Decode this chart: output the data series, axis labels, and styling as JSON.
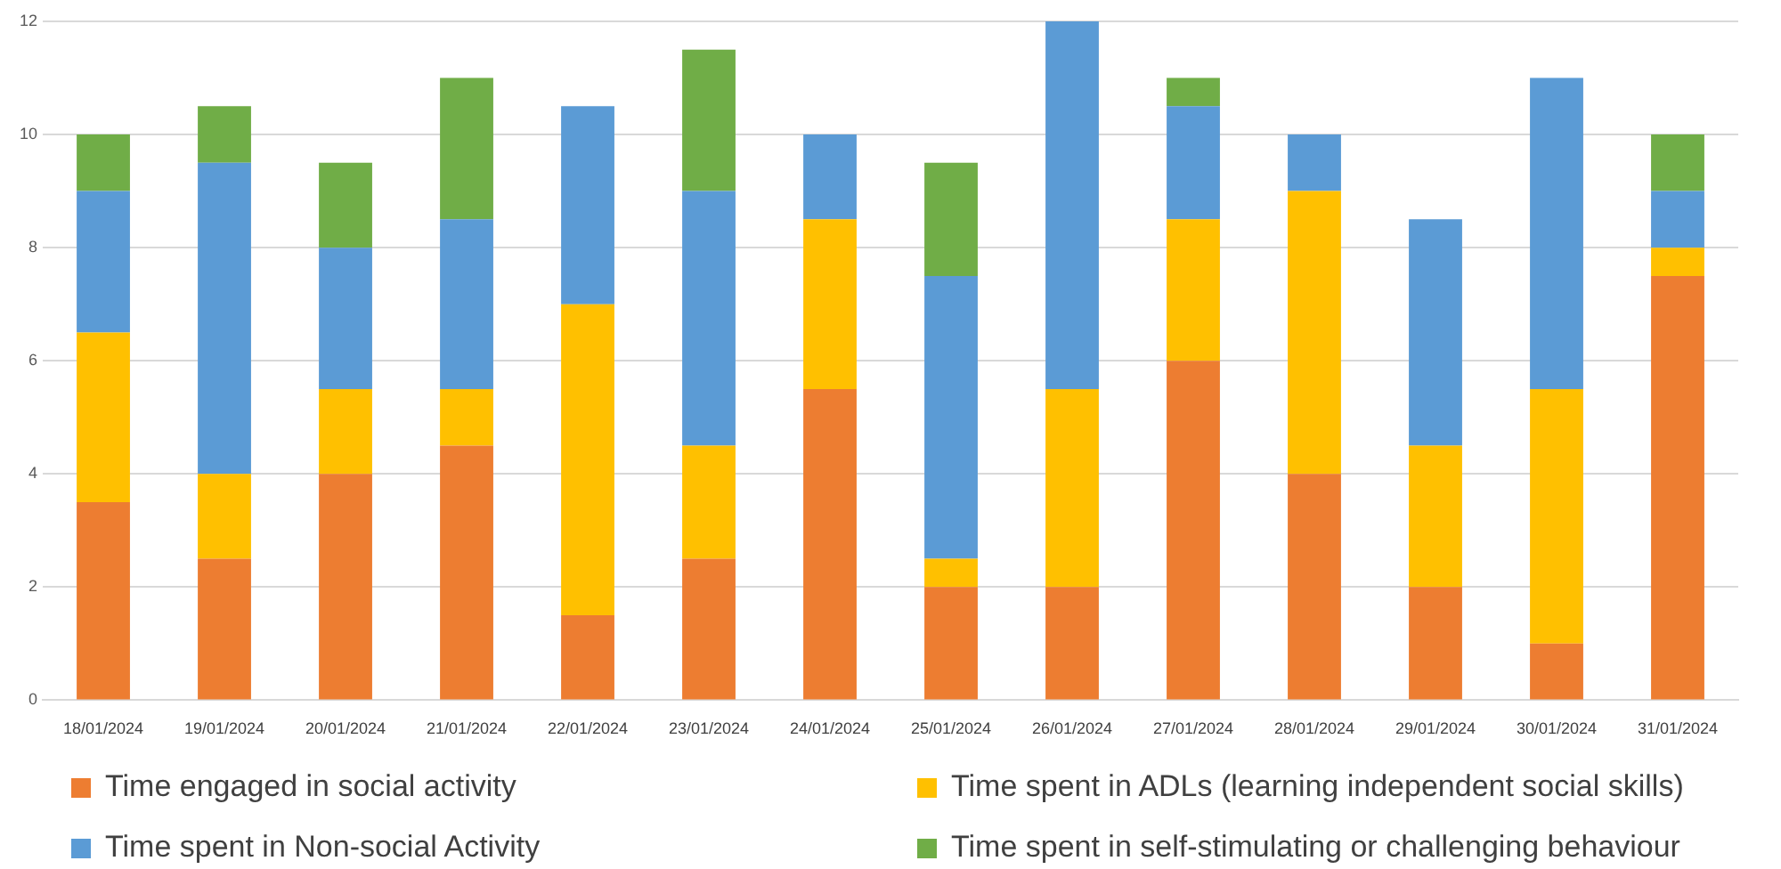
{
  "chart_data": {
    "type": "bar",
    "stacked": true,
    "grid": "y",
    "legend": "bottom",
    "categories": [
      "18/01/2024",
      "19/01/2024",
      "20/01/2024",
      "21/01/2024",
      "22/01/2024",
      "23/01/2024",
      "24/01/2024",
      "25/01/2024",
      "26/01/2024",
      "27/01/2024",
      "28/01/2024",
      "29/01/2024",
      "30/01/2024",
      "31/01/2024"
    ],
    "ylim": [
      0,
      12
    ],
    "yticks": [
      0,
      2,
      4,
      6,
      8,
      10,
      12
    ],
    "series": [
      {
        "name": "Time engaged in social activity",
        "color": "#ed7d31",
        "values": [
          3.5,
          2.5,
          4,
          4.5,
          1.5,
          2.5,
          5.5,
          2,
          2,
          6,
          4,
          2,
          1,
          7.5
        ]
      },
      {
        "name": "Time spent in ADLs (learning independent social skills)",
        "color": "#ffc000",
        "values": [
          3,
          1.5,
          1.5,
          1,
          5.5,
          2,
          3,
          0.5,
          3.5,
          2.5,
          5,
          2.5,
          4.5,
          0.5
        ]
      },
      {
        "name": "Time spent in Non-social Activity",
        "color": "#5b9bd5",
        "values": [
          2.5,
          5.5,
          2.5,
          3,
          3.5,
          4.5,
          1.5,
          5,
          6.5,
          2,
          1,
          4,
          5.5,
          1
        ]
      },
      {
        "name": "Time spent in self-stimulating or challenging behaviour",
        "color": "#70ad47",
        "values": [
          1,
          1,
          1.5,
          2.5,
          0,
          2.5,
          0,
          2,
          0,
          0.5,
          0,
          0,
          0,
          1
        ]
      }
    ]
  }
}
